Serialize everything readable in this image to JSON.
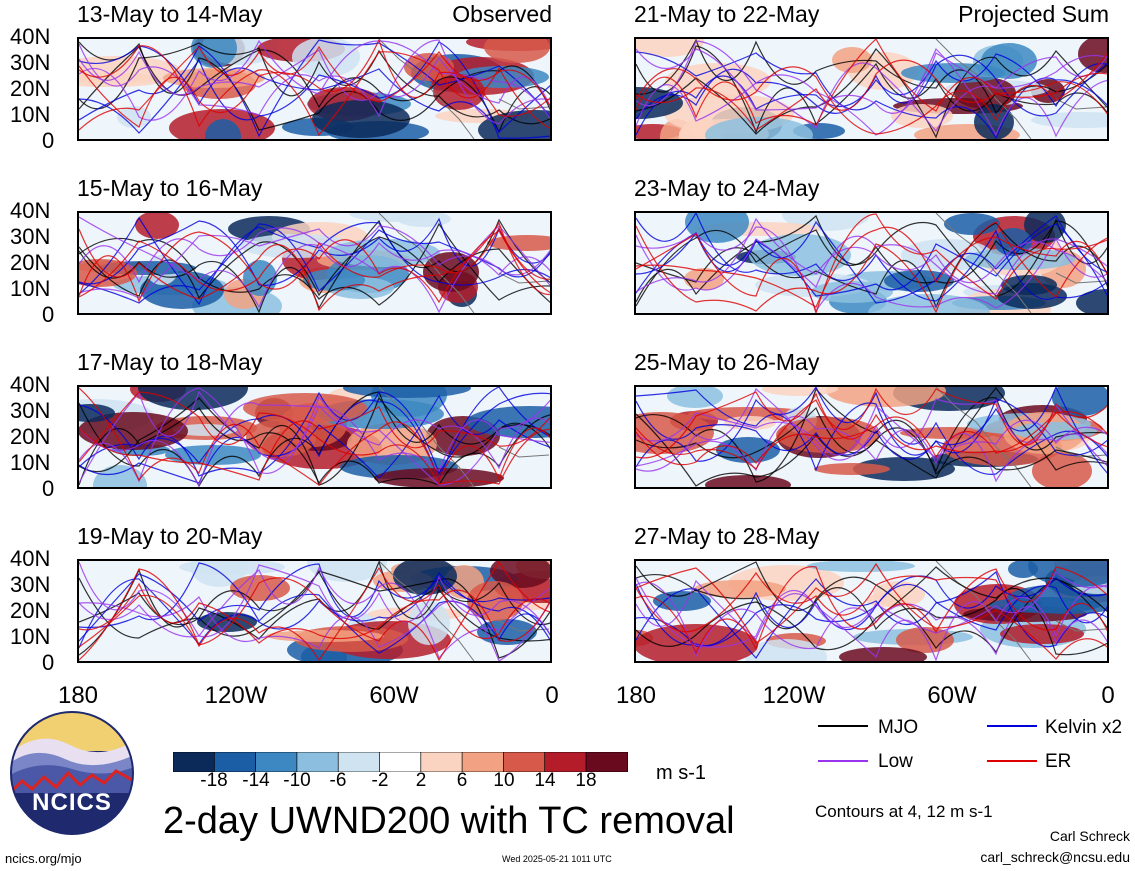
{
  "panels": [
    {
      "title": "13-May to 14-May",
      "tag": "Observed"
    },
    {
      "title": "15-May to 16-May",
      "tag": ""
    },
    {
      "title": "17-May to 18-May",
      "tag": ""
    },
    {
      "title": "19-May to 20-May",
      "tag": ""
    },
    {
      "title": "21-May to 22-May",
      "tag": "Projected Sum"
    },
    {
      "title": "23-May to 24-May",
      "tag": ""
    },
    {
      "title": "25-May to 26-May",
      "tag": ""
    },
    {
      "title": "27-May to 28-May",
      "tag": ""
    }
  ],
  "lat_labels": [
    "40N",
    "30N",
    "20N",
    "10N",
    "0"
  ],
  "lon_labels": [
    "180",
    "120W",
    "60W",
    "0"
  ],
  "legend": {
    "mjo": "MJO",
    "kelvin": "Kelvin x2",
    "low": "Low",
    "er": "ER",
    "colors": {
      "mjo": "#000000",
      "kelvin": "#0000dd",
      "low": "#9933ee",
      "er": "#dd0000"
    }
  },
  "colorbar": {
    "labels": [
      "-18",
      "-14",
      "-10",
      "-6",
      "-2",
      "2",
      "6",
      "10",
      "14",
      "18"
    ],
    "colors": [
      "#0b2a5a",
      "#1c5ea6",
      "#3d88c2",
      "#8cbfdf",
      "#cfe3f1",
      "#ffffff",
      "#fbd3c1",
      "#f2a283",
      "#d7594a",
      "#b51c2a",
      "#6a0a1f"
    ],
    "units": "m s-1"
  },
  "title": "2-day UWND200 with TC removal",
  "contours_note": "Contours at 4, 12 m s-1",
  "author": "Carl Schreck",
  "email": "carl_schreck@ncsu.edu",
  "url": "ncics.org/mjo",
  "timestamp": "Wed 2025-05-21 1011 UTC",
  "logo_text": "NCICS"
}
